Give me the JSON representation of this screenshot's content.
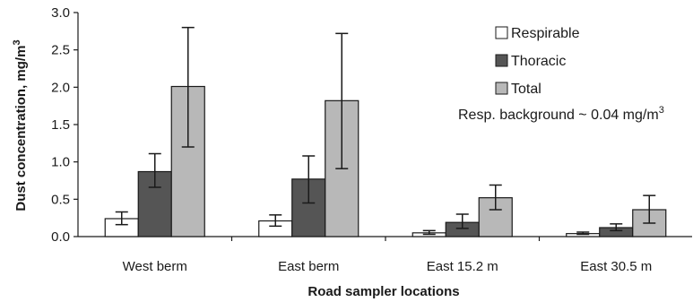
{
  "chart_data": {
    "type": "bar",
    "categories": [
      "West berm",
      "East berm",
      "East 15.2 m",
      "East 30.5 m"
    ],
    "series": [
      {
        "name": "Respirable",
        "values": [
          0.24,
          0.21,
          0.05,
          0.04
        ],
        "err_low": [
          0.16,
          0.14,
          0.03,
          0.03
        ],
        "err_high": [
          0.33,
          0.29,
          0.08,
          0.06
        ],
        "color": "#ffffff"
      },
      {
        "name": "Thoracic",
        "values": [
          0.87,
          0.77,
          0.19,
          0.12
        ],
        "err_low": [
          0.66,
          0.45,
          0.11,
          0.08
        ],
        "err_high": [
          1.11,
          1.08,
          0.3,
          0.17
        ],
        "color": "#555555"
      },
      {
        "name": "Total",
        "values": [
          2.01,
          1.82,
          0.52,
          0.36
        ],
        "err_low": [
          1.2,
          0.91,
          0.36,
          0.18
        ],
        "err_high": [
          2.8,
          2.72,
          0.69,
          0.55
        ],
        "color": "#b8b8b8"
      }
    ],
    "xlabel": "Road sampler locations",
    "ylabel_main": "Dust concentration, mg/m",
    "ylabel_sup": "3",
    "ylim": [
      0,
      3.0
    ],
    "yticks": [
      "0.0",
      "0.5",
      "1.0",
      "1.5",
      "2.0",
      "2.5",
      "3.0"
    ],
    "legend_position": "top-right",
    "annotation_main": "Resp. background ~ 0.04 mg/m",
    "annotation_sup": "3",
    "grid": false
  }
}
